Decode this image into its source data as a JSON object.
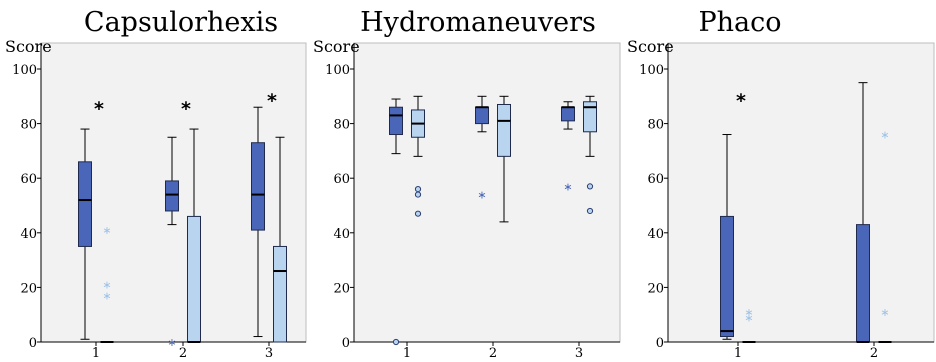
{
  "chart_data": [
    {
      "type": "box",
      "title": "Capsulorhexis",
      "ylabel": "Score",
      "xlabel": "",
      "ylim": [
        0,
        100
      ],
      "yticks": [
        0,
        20,
        40,
        60,
        80,
        100
      ],
      "categories": [
        "1",
        "2",
        "3"
      ],
      "grid": false,
      "series": [
        {
          "color": "#4a66b8",
          "boxes": [
            {
              "category": "1",
              "min": 1,
              "q1": 35,
              "median": 52,
              "q3": 66,
              "max": 78,
              "outliers": []
            },
            {
              "category": "2",
              "min": 43,
              "q1": 48,
              "median": 54,
              "q3": 59,
              "max": 75,
              "outliers": [
                {
                  "value": 0,
                  "marker": "star"
                }
              ]
            },
            {
              "category": "3",
              "min": 2,
              "q1": 41,
              "median": 54,
              "q3": 73,
              "max": 86,
              "outliers": []
            }
          ]
        },
        {
          "color": "#b8d4ef",
          "boxes": [
            {
              "category": "1",
              "min": 0,
              "q1": 0,
              "median": 0,
              "q3": 0,
              "max": 0,
              "outliers": [
                {
                  "value": 41,
                  "marker": "star"
                },
                {
                  "value": 21,
                  "marker": "star"
                },
                {
                  "value": 17,
                  "marker": "star"
                }
              ]
            },
            {
              "category": "2",
              "min": 0,
              "q1": 0,
              "median": 0,
              "q3": 46,
              "max": 78,
              "outliers": []
            },
            {
              "category": "3",
              "min": 0,
              "q1": 0,
              "median": 26,
              "q3": 35,
              "max": 75,
              "outliers": []
            }
          ]
        }
      ],
      "annotations": [
        {
          "category": "1",
          "value": 86,
          "text": "*"
        },
        {
          "category": "2",
          "value": 86,
          "text": "*"
        },
        {
          "category": "3",
          "value": 89,
          "text": "*"
        }
      ]
    },
    {
      "type": "box",
      "title": "Hydromaneuvers",
      "ylabel": "Score",
      "xlabel": "",
      "ylim": [
        0,
        100
      ],
      "yticks": [
        0,
        20,
        40,
        60,
        80,
        100
      ],
      "categories": [
        "1",
        "2",
        "3"
      ],
      "grid": false,
      "series": [
        {
          "color": "#4a66b8",
          "boxes": [
            {
              "category": "1",
              "min": 69,
              "q1": 76,
              "median": 83,
              "q3": 86,
              "max": 89,
              "outliers": [
                {
                  "value": 0,
                  "marker": "circle"
                }
              ]
            },
            {
              "category": "2",
              "min": 77,
              "q1": 80,
              "median": 86,
              "q3": 86,
              "max": 90,
              "outliers": [
                {
                  "value": 54,
                  "marker": "star"
                }
              ]
            },
            {
              "category": "3",
              "min": 78,
              "q1": 81,
              "median": 86,
              "q3": 86,
              "max": 88,
              "outliers": [
                {
                  "value": 57,
                  "marker": "star"
                }
              ]
            }
          ]
        },
        {
          "color": "#b8d4ef",
          "boxes": [
            {
              "category": "1",
              "min": 68,
              "q1": 75,
              "median": 80,
              "q3": 85,
              "max": 90,
              "outliers": [
                {
                  "value": 56,
                  "marker": "circle"
                },
                {
                  "value": 54,
                  "marker": "circle"
                },
                {
                  "value": 47,
                  "marker": "circle"
                }
              ]
            },
            {
              "category": "2",
              "min": 44,
              "q1": 68,
              "median": 81,
              "q3": 87,
              "max": 90,
              "outliers": []
            },
            {
              "category": "3",
              "min": 68,
              "q1": 77,
              "median": 86,
              "q3": 88,
              "max": 90,
              "outliers": [
                {
                  "value": 57,
                  "marker": "circle"
                },
                {
                  "value": 48,
                  "marker": "circle"
                }
              ]
            }
          ]
        }
      ],
      "annotations": []
    },
    {
      "type": "box",
      "title": "Phaco",
      "ylabel": "Score",
      "xlabel": "",
      "ylim": [
        0,
        100
      ],
      "yticks": [
        0,
        20,
        40,
        60,
        80,
        100
      ],
      "categories": [
        "1",
        "2"
      ],
      "grid": false,
      "series": [
        {
          "color": "#4a66b8",
          "boxes": [
            {
              "category": "1",
              "min": 1,
              "q1": 2,
              "median": 4,
              "q3": 46,
              "max": 76,
              "outliers": []
            },
            {
              "category": "2",
              "min": 0,
              "q1": 0,
              "median": 0,
              "q3": 43,
              "max": 95,
              "outliers": []
            }
          ]
        },
        {
          "color": "#b8d4ef",
          "boxes": [
            {
              "category": "1",
              "min": 0,
              "q1": 0,
              "median": 0,
              "q3": 0,
              "max": 0,
              "outliers": [
                {
                  "value": 11,
                  "marker": "star"
                },
                {
                  "value": 9,
                  "marker": "star"
                }
              ]
            },
            {
              "category": "2",
              "min": 0,
              "q1": 0,
              "median": 0,
              "q3": 0,
              "max": 0,
              "outliers": [
                {
                  "value": 76,
                  "marker": "star"
                },
                {
                  "value": 11,
                  "marker": "star"
                }
              ]
            }
          ]
        }
      ],
      "annotations": [
        {
          "category": "1",
          "value": 89,
          "text": "*"
        }
      ]
    }
  ]
}
